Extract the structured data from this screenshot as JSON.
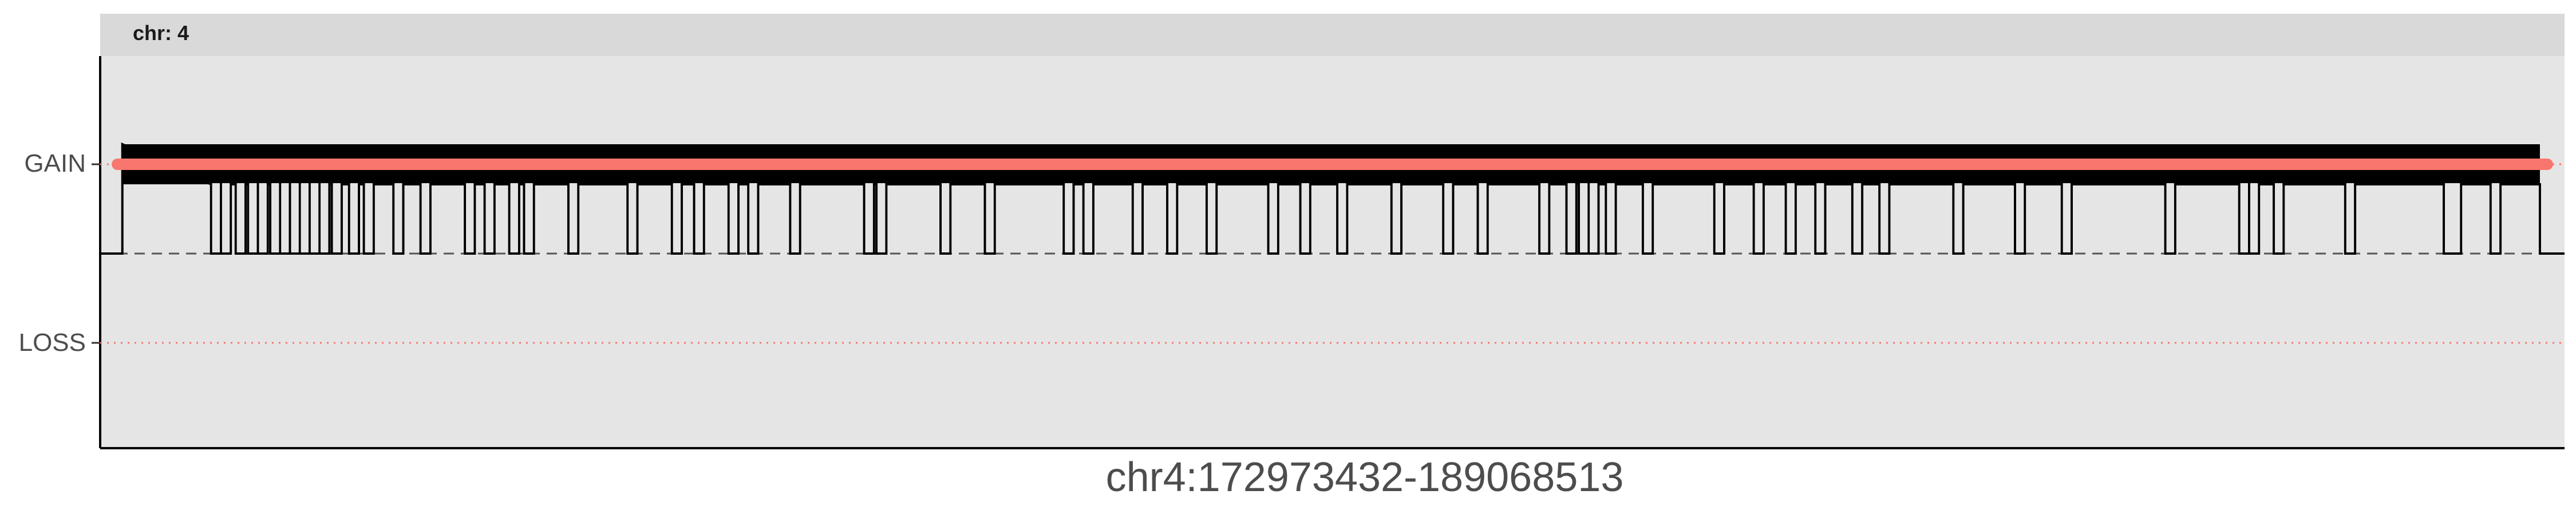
{
  "chart_data": {
    "type": "line",
    "facet_label": "chr: 4",
    "xlabel": "chr4:172973432-189068513",
    "y_categories": [
      "GAIN",
      "LOSS"
    ],
    "y_tick_labels": [
      "GAIN",
      "LOSS"
    ],
    "baseline": "neutral (dashed line)",
    "series": [
      {
        "type": "segment",
        "value": "GAIN",
        "x_start_fraction": 0.007,
        "x_end_fraction": 0.993
      }
    ],
    "step_profile": {
      "description": "copy-number state alternates between neutral and GAIN",
      "neutral_run_fractions": [
        0.045,
        0.049,
        0.055,
        0.06,
        0.064,
        0.069,
        0.073,
        0.077,
        0.081,
        0.085,
        0.089,
        0.094,
        0.101,
        0.107,
        0.119,
        0.13,
        0.148,
        0.156,
        0.166,
        0.172,
        0.19,
        0.214,
        0.232,
        0.241,
        0.255,
        0.263,
        0.28,
        0.31,
        0.315,
        0.341,
        0.359,
        0.391,
        0.399,
        0.419,
        0.433,
        0.449,
        0.474,
        0.487,
        0.502,
        0.524,
        0.545,
        0.559,
        0.584,
        0.595,
        0.6,
        0.604,
        0.611,
        0.626,
        0.655,
        0.671,
        0.684,
        0.696,
        0.711,
        0.722,
        0.752,
        0.777,
        0.796,
        0.838,
        0.868,
        0.872,
        0.882,
        0.911,
        0.951,
        0.954,
        0.97
      ],
      "neutral_run_width_fraction": 0.004
    },
    "grid": false,
    "legend": "none",
    "colors": {
      "segment": "#F8766D",
      "profile": "#000000",
      "panel_background": "#E5E5E5",
      "strip_background": "#D9D9D9",
      "axis_text": "#4D4D4D",
      "loss_line": "#F8766D",
      "baseline": "#555555"
    }
  }
}
